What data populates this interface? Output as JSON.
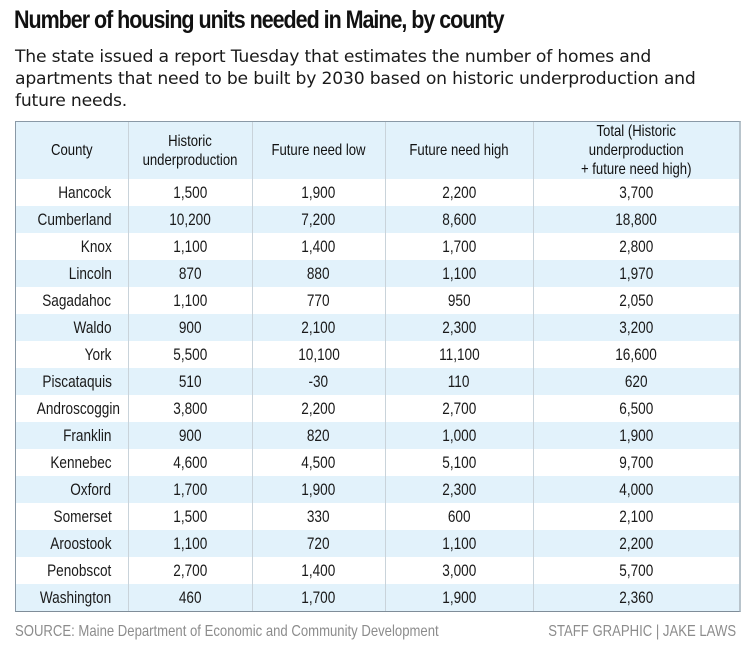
{
  "title": "Number of housing units needed in Maine, by county",
  "subtitle": "The state issued a report Tuesday that estimates the number of homes and apartments that need to be built by 2030 based on historic underproduction and future needs.",
  "colors": {
    "header_bg": "#e2f2fb",
    "stripe_bg": "#e2f2fb",
    "border": "#8a99a6",
    "footer_text": "#8c8c8c"
  },
  "chart_data": {
    "type": "table",
    "title": "Number of housing units needed in Maine, by county",
    "columns": [
      "County",
      "Historic underproduction",
      "Future need low",
      "Future need high",
      "Total (Historic underproduction + future need high)"
    ],
    "rows": [
      [
        "Hancock",
        "1,500",
        "1,900",
        "2,200",
        "3,700"
      ],
      [
        "Cumberland",
        "10,200",
        "7,200",
        "8,600",
        "18,800"
      ],
      [
        "Knox",
        "1,100",
        "1,400",
        "1,700",
        "2,800"
      ],
      [
        "Lincoln",
        "870",
        "880",
        "1,100",
        "1,970"
      ],
      [
        "Sagadahoc",
        "1,100",
        "770",
        "950",
        "2,050"
      ],
      [
        "Waldo",
        "900",
        "2,100",
        "2,300",
        "3,200"
      ],
      [
        "York",
        "5,500",
        "10,100",
        "11,100",
        "16,600"
      ],
      [
        "Piscataquis",
        "510",
        "-30",
        "110",
        "620"
      ],
      [
        "Androscoggin",
        "3,800",
        "2,200",
        "2,700",
        "6,500"
      ],
      [
        "Franklin",
        "900",
        "820",
        "1,000",
        "1,900"
      ],
      [
        "Kennebec",
        "4,600",
        "4,500",
        "5,100",
        "9,700"
      ],
      [
        "Oxford",
        "1,700",
        "1,900",
        "2,300",
        "4,000"
      ],
      [
        "Somerset",
        "1,500",
        "330",
        "600",
        "2,100"
      ],
      [
        "Aroostook",
        "1,100",
        "720",
        "1,100",
        "2,200"
      ],
      [
        "Penobscot",
        "2,700",
        "1,400",
        "3,000",
        "5,700"
      ],
      [
        "Washington",
        "460",
        "1,700",
        "1,900",
        "2,360"
      ]
    ]
  },
  "header_lines": [
    [
      "County"
    ],
    [
      "Historic",
      "underproduction"
    ],
    [
      "Future need low"
    ],
    [
      "Future need high"
    ],
    [
      "Total (Historic underproduction",
      "+ future need high)"
    ]
  ],
  "footer": {
    "source": "SOURCE: Maine Department of Economic and Community Development",
    "credit": "STAFF GRAPHIC | JAKE LAWS"
  }
}
